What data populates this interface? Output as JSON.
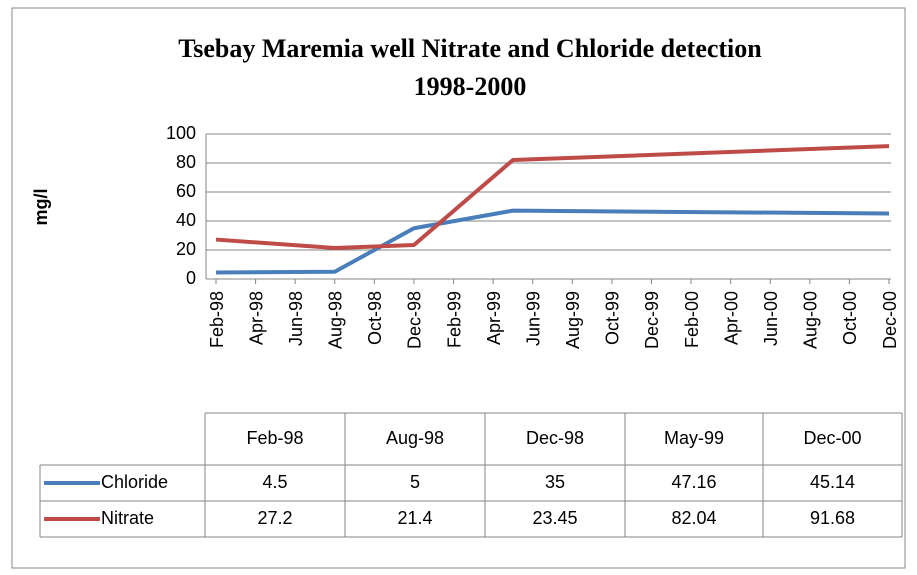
{
  "chart_data": {
    "type": "line",
    "title": [
      "Tsebay Maremia well Nitrate and Chloride detection",
      "1998-2000"
    ],
    "y_label": "mg/l",
    "x": [
      "1998-02",
      "1998-08",
      "1998-12",
      "1999-05",
      "2000-12"
    ],
    "categories": [
      "Feb-98",
      "Aug-98",
      "Dec-98",
      "May-99",
      "Dec-00"
    ],
    "series": [
      {
        "name": "Chloride",
        "color": "#4a7ebb",
        "values": [
          4.5,
          5,
          35,
          47.16,
          45.14
        ]
      },
      {
        "name": "Nitrate",
        "color": "#be4b48",
        "values": [
          27.2,
          21.4,
          23.45,
          82.04,
          91.68
        ]
      }
    ],
    "ylim": [
      0,
      100
    ],
    "yticks": [
      0,
      20,
      40,
      60,
      80,
      100
    ],
    "grid": true,
    "xlim": [
      "1998-02",
      "2000-12"
    ],
    "xticks": [
      {
        "value": "1998-02",
        "label": "Feb-98"
      },
      {
        "value": "1998-04",
        "label": "Apr-98"
      },
      {
        "value": "1998-06",
        "label": "Jun-98"
      },
      {
        "value": "1998-08",
        "label": "Aug-98"
      },
      {
        "value": "1998-10",
        "label": "Oct-98"
      },
      {
        "value": "1998-12",
        "label": "Dec-98"
      },
      {
        "value": "1999-02",
        "label": "Feb-99"
      },
      {
        "value": "1999-04",
        "label": "Apr-99"
      },
      {
        "value": "1999-06",
        "label": "Jun-99"
      },
      {
        "value": "1999-08",
        "label": "Aug-99"
      },
      {
        "value": "1999-10",
        "label": "Oct-99"
      },
      {
        "value": "1999-12",
        "label": "Dec-99"
      },
      {
        "value": "2000-02",
        "label": "Feb-00"
      },
      {
        "value": "2000-04",
        "label": "Apr-00"
      },
      {
        "value": "2000-06",
        "label": "Jun-00"
      },
      {
        "value": "2000-08",
        "label": "Aug-00"
      },
      {
        "value": "2000-10",
        "label": "Oct-00"
      },
      {
        "value": "2000-12",
        "label": "Dec-00"
      }
    ],
    "data_table": true
  }
}
